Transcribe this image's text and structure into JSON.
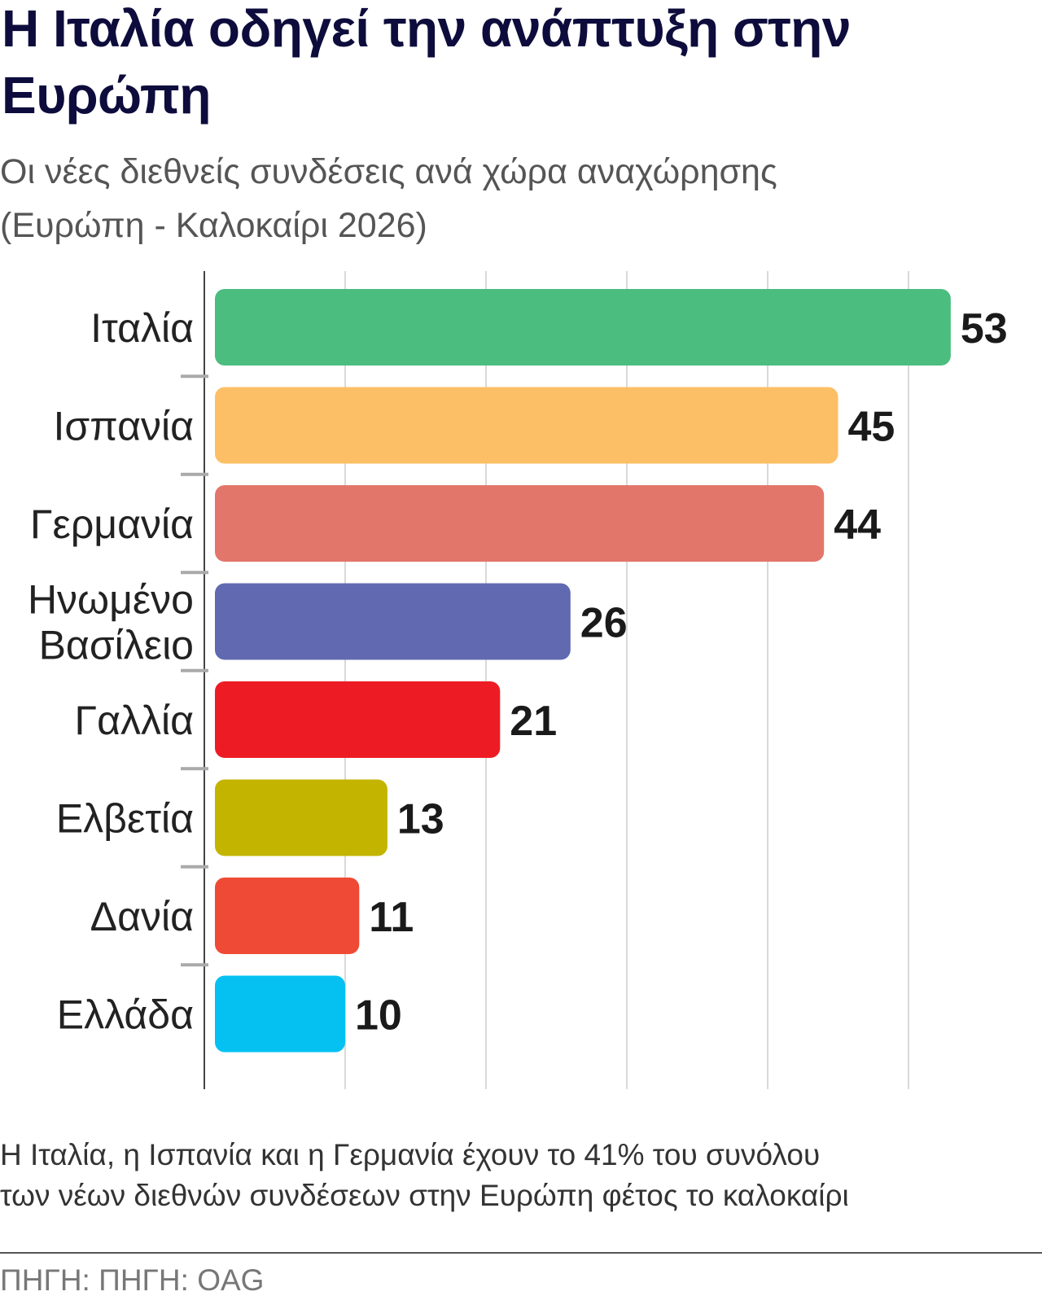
{
  "header": {
    "title": "Η Ιταλία οδηγεί την ανάπτυξη στην Ευρώπη",
    "subtitle_line1": "Οι νέες διεθνείς συνδέσεις ανά χώρα αναχώρησης",
    "subtitle_line2": "(Ευρώπη - Καλοκαίρι 2026)"
  },
  "chart_data": {
    "type": "bar",
    "orientation": "horizontal",
    "title": "Οι νέες διεθνείς συνδέσεις ανά χώρα αναχώρησης (Ευρώπη - Καλοκαίρι 2026)",
    "xlabel": "",
    "ylabel": "",
    "xlim": [
      0,
      55
    ],
    "grid": true,
    "grid_step": 10,
    "categories": [
      {
        "label": [
          "Ιταλία"
        ],
        "value": 53,
        "color": "#4bbd7e"
      },
      {
        "label": [
          "Ισπανία"
        ],
        "value": 45,
        "color": "#fdbf66"
      },
      {
        "label": [
          "Γερμανία"
        ],
        "value": 44,
        "color": "#e2766a"
      },
      {
        "label": [
          "Ηνωμένο",
          "Βασίλειο"
        ],
        "value": 26,
        "color": "#6169b0"
      },
      {
        "label": [
          "Γαλλία"
        ],
        "value": 21,
        "color": "#ed1c24"
      },
      {
        "label": [
          "Ελβετία"
        ],
        "value": 13,
        "color": "#c3b400"
      },
      {
        "label": [
          "Δανία"
        ],
        "value": 11,
        "color": "#ef4a35"
      },
      {
        "label": [
          "Ελλάδα"
        ],
        "value": 10,
        "color": "#05c1f2"
      }
    ]
  },
  "footer": {
    "note_line1": "Η Ιταλία, η Ισπανία και η Γερμανία έχουν το 41% του συνόλου",
    "note_line2": "των νέων διεθνών συνδέσεων στην Ευρώπη φέτος το καλοκαίρι",
    "source": "ΠΗΓΗ: ΠΗΓΗ: OAG"
  }
}
